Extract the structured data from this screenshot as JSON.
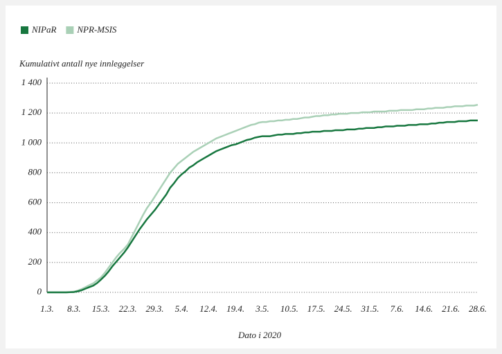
{
  "chart_data": {
    "type": "line",
    "y_label": "Kumulativt antall nye innleggelser",
    "x_label": "Dato i 2020",
    "categories": [
      "1.3.",
      null,
      null,
      null,
      null,
      null,
      null,
      "8.3.",
      null,
      null,
      null,
      null,
      null,
      null,
      "15.3.",
      null,
      null,
      null,
      null,
      null,
      null,
      "22.3.",
      null,
      null,
      null,
      null,
      null,
      null,
      "29.3.",
      null,
      null,
      null,
      null,
      null,
      null,
      "5.4.",
      null,
      null,
      null,
      null,
      null,
      null,
      "12.4.",
      null,
      null,
      null,
      null,
      null,
      null,
      "19.4.",
      null,
      null,
      null,
      null,
      null,
      null,
      "3.5.",
      null,
      null,
      null,
      null,
      null,
      null,
      "10.5.",
      null,
      null,
      null,
      null,
      null,
      null,
      "17.5.",
      null,
      null,
      null,
      null,
      null,
      null,
      "24.5.",
      null,
      null,
      null,
      null,
      null,
      null,
      "31.5.",
      null,
      null,
      null,
      null,
      null,
      null,
      "7.6.",
      null,
      null,
      null,
      null,
      null,
      null,
      "14.6.",
      null,
      null,
      null,
      null,
      null,
      null,
      "21.6.",
      null,
      null,
      null,
      null,
      null,
      null,
      "28.6."
    ],
    "series": [
      {
        "name": "NIPaR",
        "color": "#17773f",
        "values": [
          0,
          0,
          0,
          0,
          0,
          0,
          1,
          2,
          7,
          14,
          25,
          35,
          45,
          62,
          85,
          110,
          140,
          175,
          205,
          235,
          265,
          300,
          340,
          380,
          420,
          455,
          490,
          520,
          550,
          585,
          620,
          655,
          700,
          730,
          765,
          790,
          810,
          835,
          850,
          870,
          885,
          900,
          915,
          930,
          945,
          955,
          965,
          975,
          985,
          990,
          1000,
          1010,
          1020,
          1025,
          1035,
          1040,
          1045,
          1045,
          1045,
          1050,
          1055,
          1055,
          1060,
          1060,
          1060,
          1065,
          1065,
          1070,
          1070,
          1075,
          1075,
          1075,
          1080,
          1080,
          1080,
          1085,
          1085,
          1085,
          1090,
          1090,
          1090,
          1095,
          1095,
          1100,
          1100,
          1100,
          1105,
          1105,
          1110,
          1110,
          1110,
          1115,
          1115,
          1115,
          1120,
          1120,
          1120,
          1125,
          1125,
          1125,
          1130,
          1130,
          1135,
          1135,
          1140,
          1140,
          1140,
          1145,
          1145,
          1145,
          1150,
          1150,
          1150
        ]
      },
      {
        "name": "NPR-MSIS",
        "color": "#a9d0b6",
        "values": [
          0,
          0,
          0,
          0,
          0,
          0,
          2,
          5,
          12,
          22,
          35,
          48,
          60,
          80,
          100,
          130,
          165,
          200,
          235,
          265,
          290,
          320,
          370,
          420,
          470,
          520,
          565,
          600,
          640,
          680,
          720,
          760,
          800,
          830,
          860,
          880,
          900,
          920,
          940,
          955,
          970,
          985,
          1000,
          1015,
          1030,
          1040,
          1050,
          1060,
          1070,
          1080,
          1090,
          1100,
          1110,
          1120,
          1125,
          1135,
          1140,
          1140,
          1145,
          1145,
          1150,
          1150,
          1155,
          1155,
          1160,
          1160,
          1165,
          1170,
          1170,
          1175,
          1180,
          1180,
          1185,
          1185,
          1190,
          1190,
          1195,
          1195,
          1195,
          1200,
          1200,
          1200,
          1205,
          1205,
          1205,
          1210,
          1210,
          1210,
          1210,
          1215,
          1215,
          1215,
          1220,
          1220,
          1220,
          1220,
          1225,
          1225,
          1225,
          1230,
          1230,
          1235,
          1235,
          1235,
          1240,
          1240,
          1245,
          1245,
          1245,
          1250,
          1250,
          1250,
          1255
        ]
      }
    ],
    "ylim": [
      0,
      1400
    ],
    "yticks": [
      0,
      200,
      400,
      600,
      800,
      {
        "value": 1000,
        "label": "1 000"
      },
      {
        "value": 1200,
        "label": "1 200"
      },
      {
        "value": 1400,
        "label": "1 400"
      }
    ],
    "grid": true,
    "legend": "top-left"
  }
}
